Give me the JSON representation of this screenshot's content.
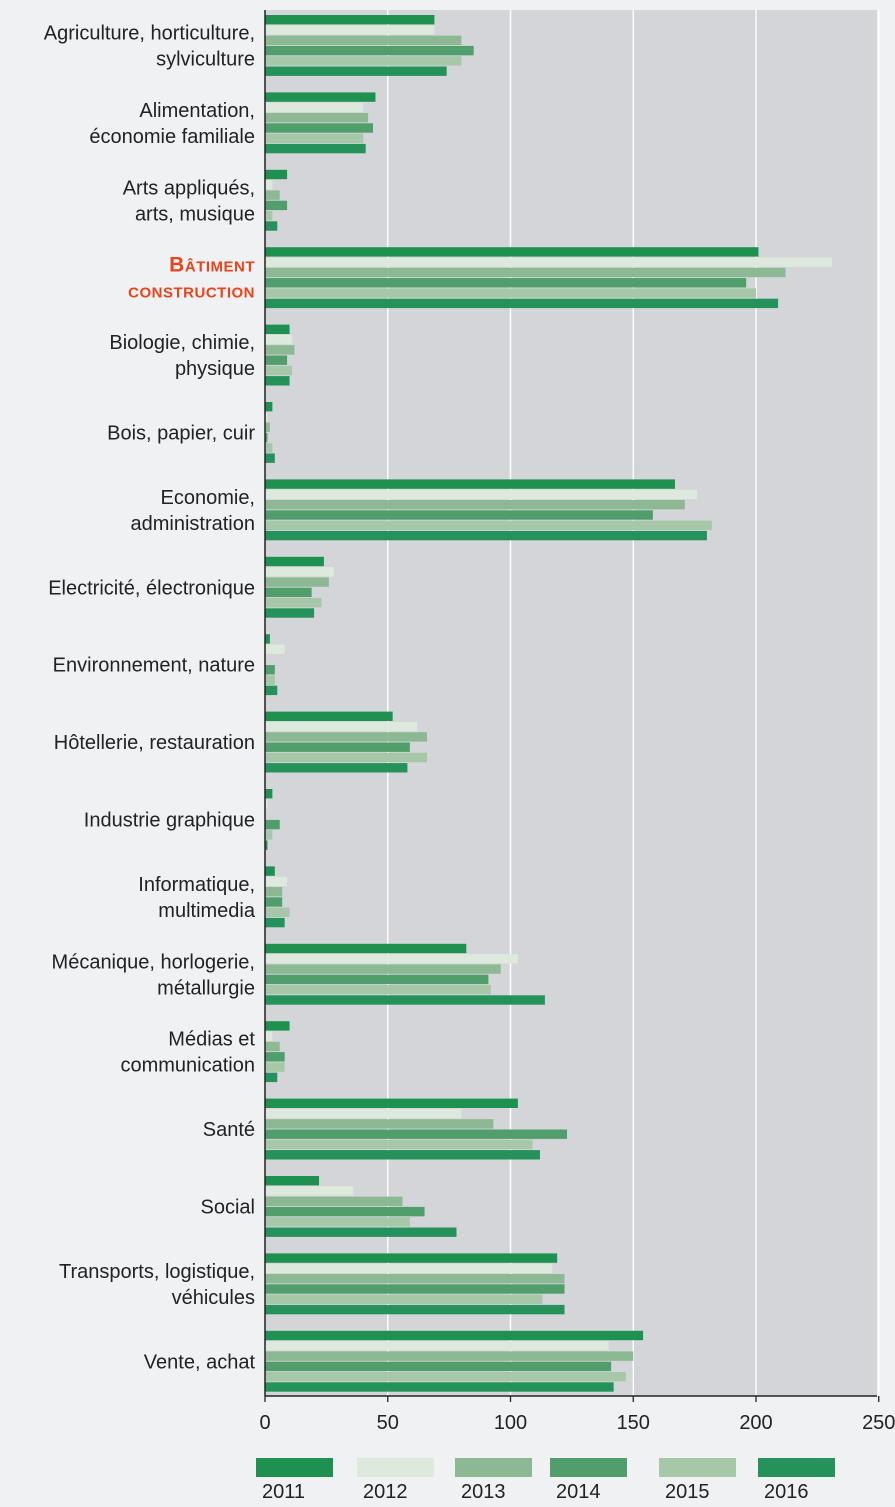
{
  "chart_data": {
    "type": "bar",
    "orientation": "horizontal",
    "title": "",
    "xlabel": "",
    "ylabel": "",
    "xlim": [
      0,
      250
    ],
    "x_ticks": [
      "0",
      "50",
      "100",
      "150",
      "200",
      "250"
    ],
    "grid": true,
    "legend_position": "bottom",
    "categories": [
      {
        "lines": [
          "Agriculture, horticulture,",
          "sylviculture"
        ],
        "highlight": false
      },
      {
        "lines": [
          "Alimentation,",
          "économie familiale"
        ],
        "highlight": false
      },
      {
        "lines": [
          "Arts appliqués,",
          "arts, musique"
        ],
        "highlight": false
      },
      {
        "lines": [
          "Bâtiment",
          "construction"
        ],
        "highlight": true
      },
      {
        "lines": [
          "Biologie, chimie,",
          "physique"
        ],
        "highlight": false
      },
      {
        "lines": [
          "Bois, papier, cuir"
        ],
        "highlight": false
      },
      {
        "lines": [
          "Economie,",
          "administration"
        ],
        "highlight": false
      },
      {
        "lines": [
          "Electricité, électronique"
        ],
        "highlight": false
      },
      {
        "lines": [
          "Environnement, nature"
        ],
        "highlight": false
      },
      {
        "lines": [
          "Hôtellerie, restauration"
        ],
        "highlight": false
      },
      {
        "lines": [
          "Industrie graphique"
        ],
        "highlight": false
      },
      {
        "lines": [
          "Informatique,",
          "multimedia"
        ],
        "highlight": false
      },
      {
        "lines": [
          "Mécanique, horlogerie,",
          "métallurgie"
        ],
        "highlight": false
      },
      {
        "lines": [
          "Médias et",
          "communication"
        ],
        "highlight": false
      },
      {
        "lines": [
          "Santé"
        ],
        "highlight": false
      },
      {
        "lines": [
          "Social"
        ],
        "highlight": false
      },
      {
        "lines": [
          "Transports, logistique,",
          "véhicules"
        ],
        "highlight": false
      },
      {
        "lines": [
          "Vente, achat"
        ],
        "highlight": false
      }
    ],
    "series": [
      {
        "name": "2011",
        "color": "#1e9150",
        "values": [
          69,
          45,
          9,
          201,
          10,
          3,
          167,
          24,
          2,
          52,
          3,
          4,
          82,
          10,
          103,
          22,
          119,
          154
        ]
      },
      {
        "name": "2012",
        "color": "#dde9dc",
        "values": [
          69,
          40,
          3,
          231,
          11,
          1,
          176,
          28,
          8,
          62,
          1,
          9,
          103,
          3,
          80,
          36,
          117,
          140
        ]
      },
      {
        "name": "2013",
        "color": "#8cb994",
        "values": [
          80,
          42,
          6,
          212,
          12,
          2,
          171,
          26,
          0,
          66,
          0,
          7,
          96,
          6,
          93,
          56,
          122,
          150
        ]
      },
      {
        "name": "2014",
        "color": "#4f9e6c",
        "values": [
          85,
          44,
          9,
          196,
          9,
          1,
          158,
          19,
          4,
          59,
          6,
          7,
          91,
          8,
          123,
          65,
          122,
          141
        ]
      },
      {
        "name": "2015",
        "color": "#a6c8a8",
        "values": [
          80,
          40,
          3,
          200,
          11,
          3,
          182,
          23,
          4,
          66,
          3,
          10,
          92,
          8,
          109,
          59,
          113,
          147
        ]
      },
      {
        "name": "2016",
        "color": "#24925a",
        "values": [
          74,
          41,
          5,
          209,
          10,
          4,
          180,
          20,
          5,
          58,
          1,
          8,
          114,
          5,
          112,
          78,
          122,
          142
        ]
      }
    ],
    "colors": {
      "background": "#eff1f3",
      "plot_background": "#d3d5d8",
      "gridline": "#ffffff",
      "axis": "#222222",
      "label_text": "#222222",
      "highlight_text": "#e8431b"
    }
  }
}
